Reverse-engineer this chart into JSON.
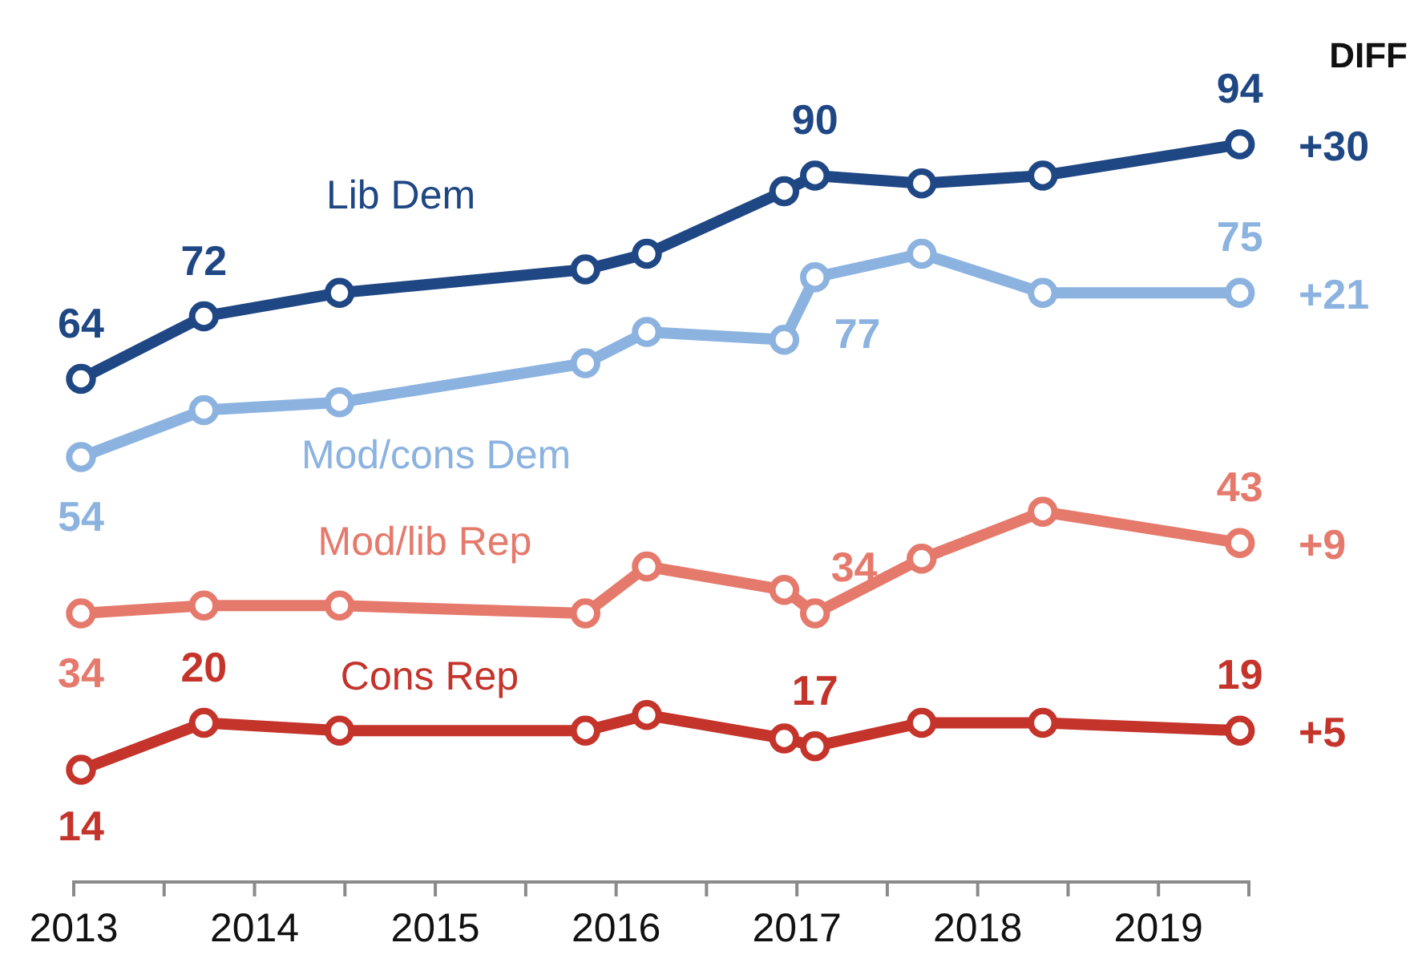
{
  "chart_data": {
    "type": "line",
    "x": [
      2013.04,
      2013.72,
      2014.47,
      2015.83,
      2016.17,
      2016.93,
      2017.1,
      2017.69,
      2018.36,
      2019.45
    ],
    "series": [
      {
        "name": "Lib Dem",
        "color": "#1f4784",
        "values": [
          64,
          72,
          75,
          78,
          80,
          88,
          90,
          89,
          90,
          94
        ],
        "value_labels": [
          "64",
          "72",
          null,
          null,
          null,
          null,
          "90",
          null,
          null,
          "94"
        ]
      },
      {
        "name": "Mod/cons Dem",
        "color": "#8cb3e0",
        "values": [
          54,
          60,
          61,
          66,
          70,
          69,
          77,
          80,
          75,
          75
        ],
        "value_labels": [
          "54",
          null,
          null,
          null,
          null,
          null,
          "77",
          null,
          null,
          "75"
        ]
      },
      {
        "name": "Mod/lib Rep",
        "color": "#e57a6c",
        "values": [
          34,
          35,
          35,
          34,
          40,
          37,
          34,
          41,
          47,
          43
        ],
        "value_labels": [
          "34",
          null,
          null,
          null,
          null,
          null,
          "34",
          null,
          null,
          "43"
        ]
      },
      {
        "name": "Cons Rep",
        "color": "#c4342b",
        "values": [
          14,
          20,
          19,
          19,
          21,
          18,
          17,
          20,
          20,
          19
        ],
        "value_labels": [
          "14",
          "20",
          null,
          null,
          null,
          null,
          "17",
          null,
          null,
          "19"
        ]
      }
    ],
    "xlim": [
      2013,
      2019.5
    ],
    "xticks": [
      2013,
      {
        "value": 2013.5,
        "label": null
      },
      2014,
      {
        "value": 2014.5,
        "label": null
      },
      2015,
      {
        "value": 2015.5,
        "label": null
      },
      2016,
      {
        "value": 2016.5,
        "label": null
      },
      2017,
      {
        "value": 2017.5,
        "label": null
      },
      2018,
      {
        "value": 2018.5,
        "label": null
      },
      2019,
      {
        "value": 2019.5,
        "label": null
      }
    ],
    "tick_labels": "x",
    "legend": false,
    "marker": "circle",
    "line_style": "solid",
    "annotations": [
      "DIFF",
      "+30",
      "+21",
      "+9",
      "+5"
    ]
  }
}
